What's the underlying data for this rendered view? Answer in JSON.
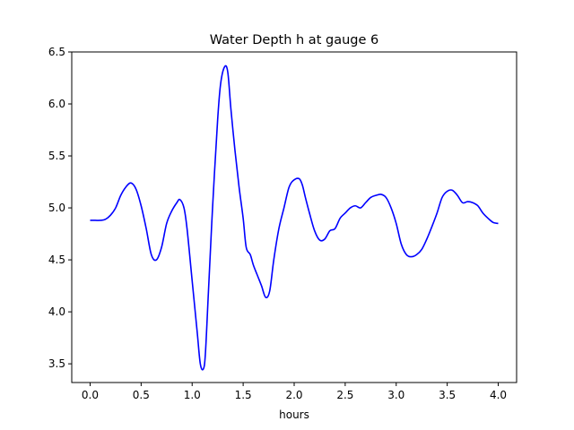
{
  "chart_data": {
    "type": "line",
    "title": "Water Depth h at gauge 6",
    "xlabel": "hours",
    "ylabel": "",
    "xlim": [
      -0.18,
      4.18
    ],
    "ylim": [
      3.32,
      6.5
    ],
    "xticks": [
      0.0,
      0.5,
      1.0,
      1.5,
      2.0,
      2.5,
      3.0,
      3.5,
      4.0
    ],
    "xtick_labels": [
      "0.0",
      "0.5",
      "1.0",
      "1.5",
      "2.0",
      "2.5",
      "3.0",
      "3.5",
      "4.0"
    ],
    "yticks": [
      3.5,
      4.0,
      4.5,
      5.0,
      5.5,
      6.0,
      6.5
    ],
    "ytick_labels": [
      "3.5",
      "4.0",
      "4.5",
      "5.0",
      "5.5",
      "6.0",
      "6.5"
    ],
    "grid": false,
    "legend": "none",
    "series": [
      {
        "color": "#0000ff",
        "x": [
          0.0,
          0.05,
          0.1,
          0.15,
          0.2,
          0.25,
          0.3,
          0.35,
          0.4,
          0.45,
          0.5,
          0.55,
          0.6,
          0.65,
          0.7,
          0.75,
          0.8,
          0.85,
          0.88,
          0.92,
          0.95,
          1.0,
          1.05,
          1.08,
          1.11,
          1.13,
          1.16,
          1.2,
          1.25,
          1.28,
          1.32,
          1.35,
          1.38,
          1.42,
          1.46,
          1.5,
          1.53,
          1.57,
          1.6,
          1.64,
          1.68,
          1.72,
          1.76,
          1.8,
          1.85,
          1.9,
          1.95,
          2.0,
          2.05,
          2.08,
          2.11,
          2.15,
          2.2,
          2.25,
          2.3,
          2.35,
          2.4,
          2.45,
          2.5,
          2.55,
          2.6,
          2.65,
          2.7,
          2.75,
          2.8,
          2.85,
          2.9,
          2.95,
          3.0,
          3.05,
          3.1,
          3.15,
          3.2,
          3.25,
          3.3,
          3.35,
          3.4,
          3.45,
          3.5,
          3.55,
          3.6,
          3.65,
          3.7,
          3.75,
          3.8,
          3.85,
          3.9,
          3.95,
          4.0
        ],
        "y": [
          4.88,
          4.88,
          4.88,
          4.89,
          4.93,
          5.0,
          5.12,
          5.2,
          5.24,
          5.18,
          5.02,
          4.8,
          4.55,
          4.5,
          4.62,
          4.85,
          4.97,
          5.05,
          5.08,
          5.0,
          4.8,
          4.3,
          3.8,
          3.5,
          3.45,
          3.6,
          4.2,
          5.0,
          5.85,
          6.2,
          6.36,
          6.3,
          5.95,
          5.55,
          5.2,
          4.9,
          4.62,
          4.55,
          4.45,
          4.35,
          4.25,
          4.14,
          4.2,
          4.5,
          4.8,
          5.0,
          5.2,
          5.27,
          5.28,
          5.22,
          5.1,
          4.95,
          4.78,
          4.69,
          4.7,
          4.78,
          4.8,
          4.9,
          4.95,
          5.0,
          5.02,
          5.0,
          5.05,
          5.1,
          5.12,
          5.13,
          5.1,
          5.0,
          4.85,
          4.65,
          4.55,
          4.53,
          4.55,
          4.6,
          4.7,
          4.82,
          4.95,
          5.1,
          5.16,
          5.17,
          5.12,
          5.05,
          5.06,
          5.05,
          5.02,
          4.95,
          4.9,
          4.86,
          4.85
        ]
      }
    ]
  }
}
